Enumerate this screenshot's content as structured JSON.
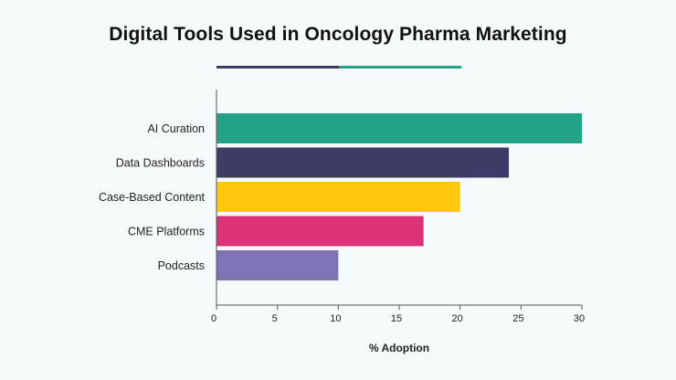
{
  "title": "Digital Tools Used in Oncology Pharma Marketing",
  "colors": {
    "accent_left": "#3d3c66",
    "accent_right": "#22a386",
    "axis": "#555555",
    "background": "#f5fafc"
  },
  "chart_data": {
    "type": "bar",
    "orientation": "horizontal",
    "title": "Digital Tools Used in Oncology Pharma Marketing",
    "xlabel": "% Adoption",
    "ylabel": "",
    "xlim": [
      0,
      30
    ],
    "xticks": [
      0,
      5,
      10,
      15,
      20,
      25,
      30
    ],
    "grid": false,
    "categories": [
      "AI Curation",
      "Data Dashboards",
      "Case-Based Content",
      "CME Platforms",
      "Podcasts"
    ],
    "values": [
      30,
      24,
      20,
      17,
      10
    ],
    "bar_colors": [
      "#22a386",
      "#3d3c66",
      "#ffc90e",
      "#dd3275",
      "#8072b5"
    ]
  }
}
